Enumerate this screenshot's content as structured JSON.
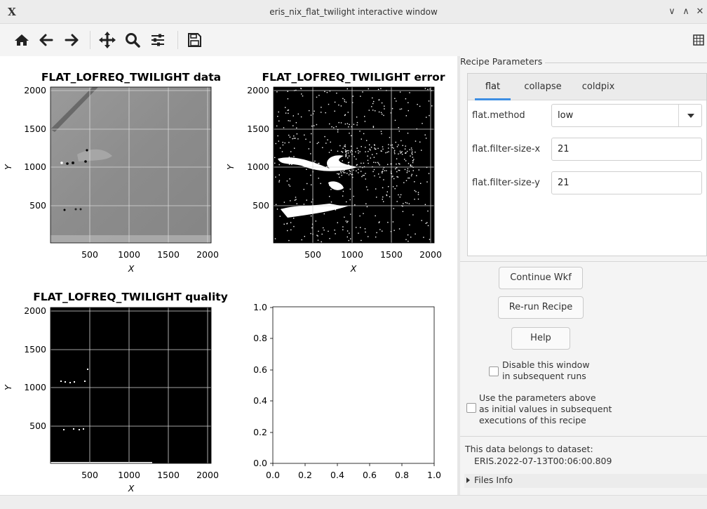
{
  "window": {
    "title": "eris_nix_flat_twilight interactive window",
    "controls": [
      "minimize-icon",
      "maximize-icon",
      "close-icon"
    ]
  },
  "toolbar": {
    "buttons": [
      "home-icon",
      "back-arrow-icon",
      "forward-arrow-icon",
      "pan-icon",
      "zoom-icon",
      "configure-subplots-icon",
      "save-icon"
    ],
    "right_button": "grid-layout-icon"
  },
  "plots": [
    {
      "title": "FLAT_LOFREQ_TWILIGHT data",
      "xlabel": "X",
      "ylabel": "Y",
      "xticks": [
        "500",
        "1000",
        "1500",
        "2000"
      ],
      "yticks": [
        "2000",
        "1500",
        "1000",
        "500"
      ],
      "style": "grayscale-image"
    },
    {
      "title": "FLAT_LOFREQ_TWILIGHT error",
      "xlabel": "X",
      "ylabel": "Y",
      "xticks": [
        "500",
        "1000",
        "1500",
        "2000"
      ],
      "yticks": [
        "2000",
        "1500",
        "1000",
        "500"
      ],
      "style": "black-white-image"
    },
    {
      "title": "FLAT_LOFREQ_TWILIGHT quality",
      "xlabel": "X",
      "ylabel": "Y",
      "xticks": [
        "500",
        "1000",
        "1500",
        "2000"
      ],
      "yticks": [
        "2000",
        "1500",
        "1000",
        "500"
      ],
      "style": "black-image"
    },
    {
      "title": "",
      "xticks": [
        "0.0",
        "0.2",
        "0.4",
        "0.6",
        "0.8",
        "1.0"
      ],
      "yticks": [
        "1.0",
        "0.8",
        "0.6",
        "0.4",
        "0.2",
        "0.0"
      ],
      "style": "empty-axes"
    }
  ],
  "recipe": {
    "legend": "Recipe Parameters",
    "tabs": [
      "flat",
      "collapse",
      "coldpix"
    ],
    "active_tab": "flat",
    "params": [
      {
        "label": "flat.method",
        "value": "low",
        "kind": "select"
      },
      {
        "label": "flat.filter-size-x",
        "value": "21",
        "kind": "text"
      },
      {
        "label": "flat.filter-size-y",
        "value": "21",
        "kind": "text"
      }
    ]
  },
  "actions": {
    "continue": "Continue Wkf",
    "rerun": "Re-run Recipe",
    "help": "Help"
  },
  "options": {
    "disable": {
      "line1": "Disable this window",
      "line2": "in subsequent runs",
      "checked": false
    },
    "reuse": {
      "line1": "Use the parameters above",
      "line2": "as initial values in subsequent",
      "line3": "executions of this recipe",
      "checked": false
    }
  },
  "dataset": {
    "label": "This data belongs to dataset:",
    "value": "ERIS.2022-07-13T00:06:00.809"
  },
  "files_info": {
    "label": "Files Info",
    "expanded": false
  }
}
